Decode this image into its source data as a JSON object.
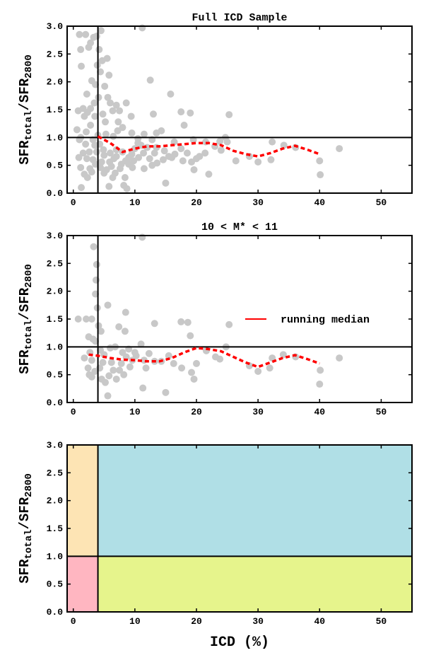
{
  "colors": {
    "points": "#c8c8c8",
    "median": "#ff0000",
    "refline": "#000000",
    "region_low_icd_high_ratio": "#fde4b4",
    "region_low_icd_low_ratio": "#ffb6c1",
    "region_high_icd_high_ratio": "#b0dfe6",
    "region_high_icd_low_ratio": "#e6f48c"
  },
  "axis_labels": {
    "y_main": "SFR",
    "y_sub_top": "total",
    "y_slash": "/SFR",
    "y_sub_bottom": "2800",
    "x": "ICD (%)"
  },
  "chart_data": [
    {
      "type": "scatter",
      "title": "Full ICD Sample",
      "xlim": [
        -1,
        55
      ],
      "ylim": [
        0,
        3
      ],
      "xticks": [
        0,
        10,
        20,
        30,
        40,
        50
      ],
      "yticks": [
        0.0,
        0.5,
        1.0,
        1.5,
        2.0,
        2.5,
        3.0
      ],
      "xtick_labels": [
        "0",
        "10",
        "20",
        "30",
        "40",
        "50"
      ],
      "ytick_labels": [
        "0.0",
        "0.5",
        "1.0",
        "1.5",
        "2.0",
        "2.5",
        "3.0"
      ],
      "hline": 1.0,
      "vline": 4,
      "points": [
        [
          1.0,
          2.85
        ],
        [
          1.3,
          2.28
        ],
        [
          1.2,
          2.58
        ],
        [
          2.0,
          2.85
        ],
        [
          2.5,
          2.62
        ],
        [
          2.8,
          2.7
        ],
        [
          3.3,
          2.8
        ],
        [
          3.0,
          2.02
        ],
        [
          3.6,
          1.95
        ],
        [
          3.9,
          2.3
        ],
        [
          3.8,
          2.82
        ],
        [
          4.5,
          2.92
        ],
        [
          4.2,
          2.58
        ],
        [
          4.7,
          2.38
        ],
        [
          4.4,
          2.18
        ],
        [
          5.5,
          2.42
        ],
        [
          5.8,
          2.12
        ],
        [
          5.1,
          1.92
        ],
        [
          4.1,
          1.72
        ],
        [
          3.4,
          1.62
        ],
        [
          2.2,
          1.78
        ],
        [
          1.6,
          1.52
        ],
        [
          0.8,
          1.48
        ],
        [
          1.8,
          1.38
        ],
        [
          2.3,
          1.45
        ],
        [
          2.8,
          1.52
        ],
        [
          3.5,
          1.38
        ],
        [
          4.8,
          1.42
        ],
        [
          5.2,
          1.28
        ],
        [
          5.6,
          1.72
        ],
        [
          6.0,
          1.62
        ],
        [
          6.4,
          1.48
        ],
        [
          7.0,
          1.58
        ],
        [
          7.3,
          1.28
        ],
        [
          7.5,
          1.48
        ],
        [
          8.6,
          1.62
        ],
        [
          9.4,
          1.38
        ],
        [
          12.5,
          2.03
        ],
        [
          11.2,
          2.97
        ],
        [
          13.0,
          1.42
        ],
        [
          15.8,
          1.78
        ],
        [
          17.5,
          1.46
        ],
        [
          19.0,
          1.44
        ],
        [
          18.0,
          1.22
        ],
        [
          25.3,
          1.41
        ],
        [
          14.3,
          1.12
        ],
        [
          13.5,
          1.08
        ],
        [
          11.5,
          1.06
        ],
        [
          10.5,
          0.98
        ],
        [
          16.4,
          0.92
        ],
        [
          19.5,
          0.96
        ],
        [
          21.5,
          0.92
        ],
        [
          23.8,
          0.93
        ],
        [
          24.7,
          1.0
        ],
        [
          12.0,
          0.82
        ],
        [
          9.5,
          0.7
        ],
        [
          8.0,
          0.74
        ],
        [
          7.0,
          0.78
        ],
        [
          6.0,
          0.72
        ],
        [
          5.0,
          0.68
        ],
        [
          4.3,
          0.88
        ],
        [
          3.5,
          0.86
        ],
        [
          3.2,
          0.96
        ],
        [
          2.6,
          0.74
        ],
        [
          2.2,
          0.62
        ],
        [
          1.6,
          0.72
        ],
        [
          0.9,
          0.64
        ],
        [
          1.2,
          0.46
        ],
        [
          1.8,
          0.34
        ],
        [
          2.3,
          0.28
        ],
        [
          2.7,
          0.44
        ],
        [
          3.6,
          0.52
        ],
        [
          4.6,
          0.56
        ],
        [
          5.4,
          0.42
        ],
        [
          6.2,
          0.48
        ],
        [
          6.8,
          0.36
        ],
        [
          7.6,
          0.44
        ],
        [
          8.4,
          0.28
        ],
        [
          9.0,
          0.52
        ],
        [
          9.8,
          0.58
        ],
        [
          10.6,
          0.64
        ],
        [
          11.4,
          0.72
        ],
        [
          12.4,
          0.62
        ],
        [
          13.6,
          0.54
        ],
        [
          14.6,
          0.6
        ],
        [
          15.5,
          0.66
        ],
        [
          16.5,
          0.7
        ],
        [
          17.5,
          0.8
        ],
        [
          18.5,
          0.72
        ],
        [
          20.0,
          0.62
        ],
        [
          19.2,
          0.56
        ],
        [
          20.5,
          0.66
        ],
        [
          19.6,
          0.42
        ],
        [
          22.0,
          0.34
        ],
        [
          23.0,
          0.84
        ],
        [
          24.0,
          0.77
        ],
        [
          25.0,
          0.92
        ],
        [
          26.4,
          0.58
        ],
        [
          28.6,
          0.66
        ],
        [
          30.0,
          0.56
        ],
        [
          32.1,
          0.6
        ],
        [
          32.3,
          0.92
        ],
        [
          34.2,
          0.86
        ],
        [
          36.1,
          0.82
        ],
        [
          40.0,
          0.58
        ],
        [
          40.1,
          0.33
        ],
        [
          43.2,
          0.8
        ],
        [
          16.0,
          0.64
        ],
        [
          15.0,
          0.18
        ],
        [
          13.5,
          0.82
        ],
        [
          11.0,
          0.86
        ],
        [
          10.0,
          0.8
        ],
        [
          9.0,
          0.64
        ],
        [
          8.5,
          0.58
        ],
        [
          7.8,
          0.52
        ],
        [
          6.6,
          0.62
        ],
        [
          5.9,
          0.56
        ],
        [
          4.9,
          0.78
        ],
        [
          3.8,
          0.74
        ],
        [
          1.3,
          0.1
        ],
        [
          5.8,
          0.12
        ],
        [
          8.2,
          0.14
        ],
        [
          8.7,
          0.08
        ],
        [
          2.1,
          1.1
        ],
        [
          4.0,
          1.04
        ],
        [
          5.3,
          1.06
        ],
        [
          7.2,
          1.12
        ],
        [
          8.0,
          1.18
        ],
        [
          9.5,
          1.08
        ],
        [
          1.2,
          1.0
        ],
        [
          2.8,
          1.22
        ],
        [
          6.5,
          1.02
        ],
        [
          10.5,
          0.9
        ],
        [
          12.8,
          0.96
        ],
        [
          14.8,
          0.76
        ],
        [
          17.8,
          0.58
        ],
        [
          21.4,
          0.72
        ],
        [
          11.5,
          0.44
        ],
        [
          12.8,
          0.5
        ],
        [
          3.2,
          0.6
        ],
        [
          2.0,
          0.88
        ],
        [
          1.0,
          0.96
        ],
        [
          0.6,
          1.14
        ],
        [
          5.0,
          0.36
        ],
        [
          6.4,
          0.28
        ],
        [
          4.4,
          0.46
        ],
        [
          7.0,
          0.66
        ],
        [
          3.0,
          0.38
        ],
        [
          9.6,
          0.46
        ],
        [
          13.2,
          0.72
        ]
      ],
      "series": [
        {
          "type": "line",
          "x": [
            4,
            6,
            8,
            10,
            12,
            14,
            16,
            18,
            20,
            22,
            24,
            26,
            28,
            30,
            32,
            34,
            36,
            38,
            40
          ],
          "values": [
            1.02,
            0.9,
            0.74,
            0.8,
            0.84,
            0.84,
            0.86,
            0.88,
            0.9,
            0.9,
            0.86,
            0.76,
            0.7,
            0.66,
            0.72,
            0.8,
            0.85,
            0.78,
            0.7
          ]
        }
      ]
    },
    {
      "type": "scatter",
      "title": "10 < M* < 11",
      "xlim": [
        -1,
        55
      ],
      "ylim": [
        0,
        3
      ],
      "xticks": [
        0,
        10,
        20,
        30,
        40,
        50
      ],
      "yticks": [
        0.0,
        0.5,
        1.0,
        1.5,
        2.0,
        2.5,
        3.0
      ],
      "xtick_labels": [
        "0",
        "10",
        "20",
        "30",
        "40",
        "50"
      ],
      "ytick_labels": [
        "0.0",
        "0.5",
        "1.0",
        "1.5",
        "2.0",
        "2.5",
        "3.0"
      ],
      "hline": 1.0,
      "vline": 4,
      "legend": {
        "label": "running median",
        "position": "right"
      },
      "points": [
        [
          3.3,
          2.8
        ],
        [
          3.8,
          2.48
        ],
        [
          3.7,
          2.2
        ],
        [
          3.6,
          1.95
        ],
        [
          3.9,
          1.7
        ],
        [
          11.2,
          2.97
        ],
        [
          5.6,
          1.75
        ],
        [
          8.5,
          1.62
        ],
        [
          7.4,
          1.36
        ],
        [
          0.8,
          1.5
        ],
        [
          2.1,
          1.5
        ],
        [
          3.0,
          1.5
        ],
        [
          4.5,
          1.28
        ],
        [
          4.1,
          1.38
        ],
        [
          8.4,
          1.28
        ],
        [
          13.2,
          1.42
        ],
        [
          17.5,
          1.45
        ],
        [
          18.6,
          1.44
        ],
        [
          19.0,
          1.2
        ],
        [
          25.3,
          1.4
        ],
        [
          2.5,
          1.18
        ],
        [
          3.2,
          1.14
        ],
        [
          3.6,
          1.1
        ],
        [
          2.7,
          0.9
        ],
        [
          1.8,
          0.8
        ],
        [
          2.4,
          0.62
        ],
        [
          2.6,
          0.5
        ],
        [
          3.0,
          0.46
        ],
        [
          3.5,
          0.56
        ],
        [
          4.3,
          0.62
        ],
        [
          4.8,
          0.72
        ],
        [
          5.2,
          0.36
        ],
        [
          5.6,
          0.12
        ],
        [
          5.8,
          0.48
        ],
        [
          6.5,
          0.58
        ],
        [
          7.0,
          0.42
        ],
        [
          7.5,
          0.58
        ],
        [
          8.0,
          0.9
        ],
        [
          8.6,
          0.82
        ],
        [
          9.6,
          0.76
        ],
        [
          10.2,
          0.84
        ],
        [
          11.0,
          1.05
        ],
        [
          11.5,
          0.76
        ],
        [
          11.8,
          0.62
        ],
        [
          12.3,
          0.88
        ],
        [
          11.3,
          0.26
        ],
        [
          13.2,
          0.74
        ],
        [
          14.3,
          0.74
        ],
        [
          15.0,
          0.18
        ],
        [
          15.5,
          0.84
        ],
        [
          16.3,
          0.7
        ],
        [
          17.6,
          0.62
        ],
        [
          19.2,
          0.54
        ],
        [
          19.6,
          0.42
        ],
        [
          20.0,
          0.7
        ],
        [
          21.6,
          0.93
        ],
        [
          23.1,
          0.82
        ],
        [
          23.8,
          0.78
        ],
        [
          24.8,
          1.0
        ],
        [
          28.6,
          0.66
        ],
        [
          30.0,
          0.56
        ],
        [
          31.9,
          0.62
        ],
        [
          32.3,
          0.8
        ],
        [
          34.1,
          0.86
        ],
        [
          36.1,
          0.82
        ],
        [
          40.1,
          0.58
        ],
        [
          40.0,
          0.33
        ],
        [
          43.2,
          0.8
        ],
        [
          6.0,
          0.98
        ],
        [
          6.8,
          1.0
        ],
        [
          9.0,
          0.96
        ],
        [
          10.0,
          0.9
        ],
        [
          5.0,
          0.86
        ],
        [
          4.4,
          0.94
        ],
        [
          7.8,
          0.7
        ],
        [
          9.2,
          0.64
        ],
        [
          6.2,
          0.72
        ],
        [
          4.6,
          0.42
        ],
        [
          8.2,
          0.5
        ],
        [
          3.0,
          0.76
        ]
      ],
      "series": [
        {
          "name": "running median",
          "type": "line",
          "x": [
            2.5,
            4,
            6,
            8,
            10,
            12,
            14,
            16,
            18,
            20,
            22,
            24,
            26,
            28,
            30,
            32,
            34,
            36,
            38,
            40
          ],
          "values": [
            0.86,
            0.84,
            0.8,
            0.77,
            0.76,
            0.74,
            0.74,
            0.8,
            0.9,
            0.98,
            0.96,
            0.92,
            0.82,
            0.72,
            0.64,
            0.72,
            0.8,
            0.85,
            0.78,
            0.7
          ]
        }
      ]
    },
    {
      "type": "area",
      "xlim": [
        -1,
        55
      ],
      "ylim": [
        0,
        3
      ],
      "xticks": [
        0,
        10,
        20,
        30,
        40,
        50
      ],
      "yticks": [
        0.0,
        0.5,
        1.0,
        1.5,
        2.0,
        2.5,
        3.0
      ],
      "xtick_labels": [
        "0",
        "10",
        "20",
        "30",
        "40",
        "50"
      ],
      "ytick_labels": [
        "0.0",
        "0.5",
        "1.0",
        "1.5",
        "2.0",
        "2.5",
        "3.0"
      ],
      "xlabel": "ICD (%)",
      "hline": 1.0,
      "vline": 4,
      "regions": [
        {
          "x": [
            -1,
            4
          ],
          "y": [
            1,
            3
          ],
          "color": "#fde4b4"
        },
        {
          "x": [
            -1,
            4
          ],
          "y": [
            0,
            1
          ],
          "color": "#ffb6c1"
        },
        {
          "x": [
            4,
            55
          ],
          "y": [
            1,
            3
          ],
          "color": "#b0dfe6"
        },
        {
          "x": [
            4,
            55
          ],
          "y": [
            0,
            1
          ],
          "color": "#e6f48c"
        }
      ]
    }
  ]
}
